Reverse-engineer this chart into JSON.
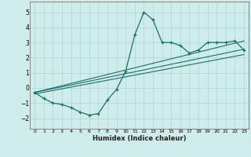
{
  "xlabel": "Humidex (Indice chaleur)",
  "bg_color": "#ceecea",
  "line_color": "#1a7068",
  "grid_color": "#aed4d0",
  "xlim": [
    -0.5,
    23.5
  ],
  "ylim": [
    -2.7,
    5.7
  ],
  "xticks": [
    0,
    1,
    2,
    3,
    4,
    5,
    6,
    7,
    8,
    9,
    10,
    11,
    12,
    13,
    14,
    15,
    16,
    17,
    18,
    19,
    20,
    21,
    22,
    23
  ],
  "yticks": [
    -2,
    -1,
    0,
    1,
    2,
    3,
    4,
    5
  ],
  "main_x": [
    0,
    1,
    2,
    3,
    4,
    5,
    6,
    7,
    8,
    9,
    10,
    11,
    12,
    13,
    14,
    15,
    16,
    17,
    18,
    19,
    20,
    21,
    22,
    23
  ],
  "main_y": [
    -0.3,
    -0.7,
    -1.0,
    -1.1,
    -1.3,
    -1.6,
    -1.8,
    -1.7,
    -0.8,
    -0.1,
    1.1,
    3.5,
    5.0,
    4.5,
    3.0,
    3.0,
    2.8,
    2.3,
    2.5,
    3.0,
    3.0,
    3.0,
    3.1,
    2.5
  ],
  "line2_x": [
    0,
    23
  ],
  "line2_y": [
    -0.3,
    2.55
  ],
  "line3_x": [
    0,
    23
  ],
  "line3_y": [
    -0.3,
    3.1
  ],
  "line4_x": [
    0,
    23
  ],
  "line4_y": [
    -0.4,
    2.2
  ]
}
